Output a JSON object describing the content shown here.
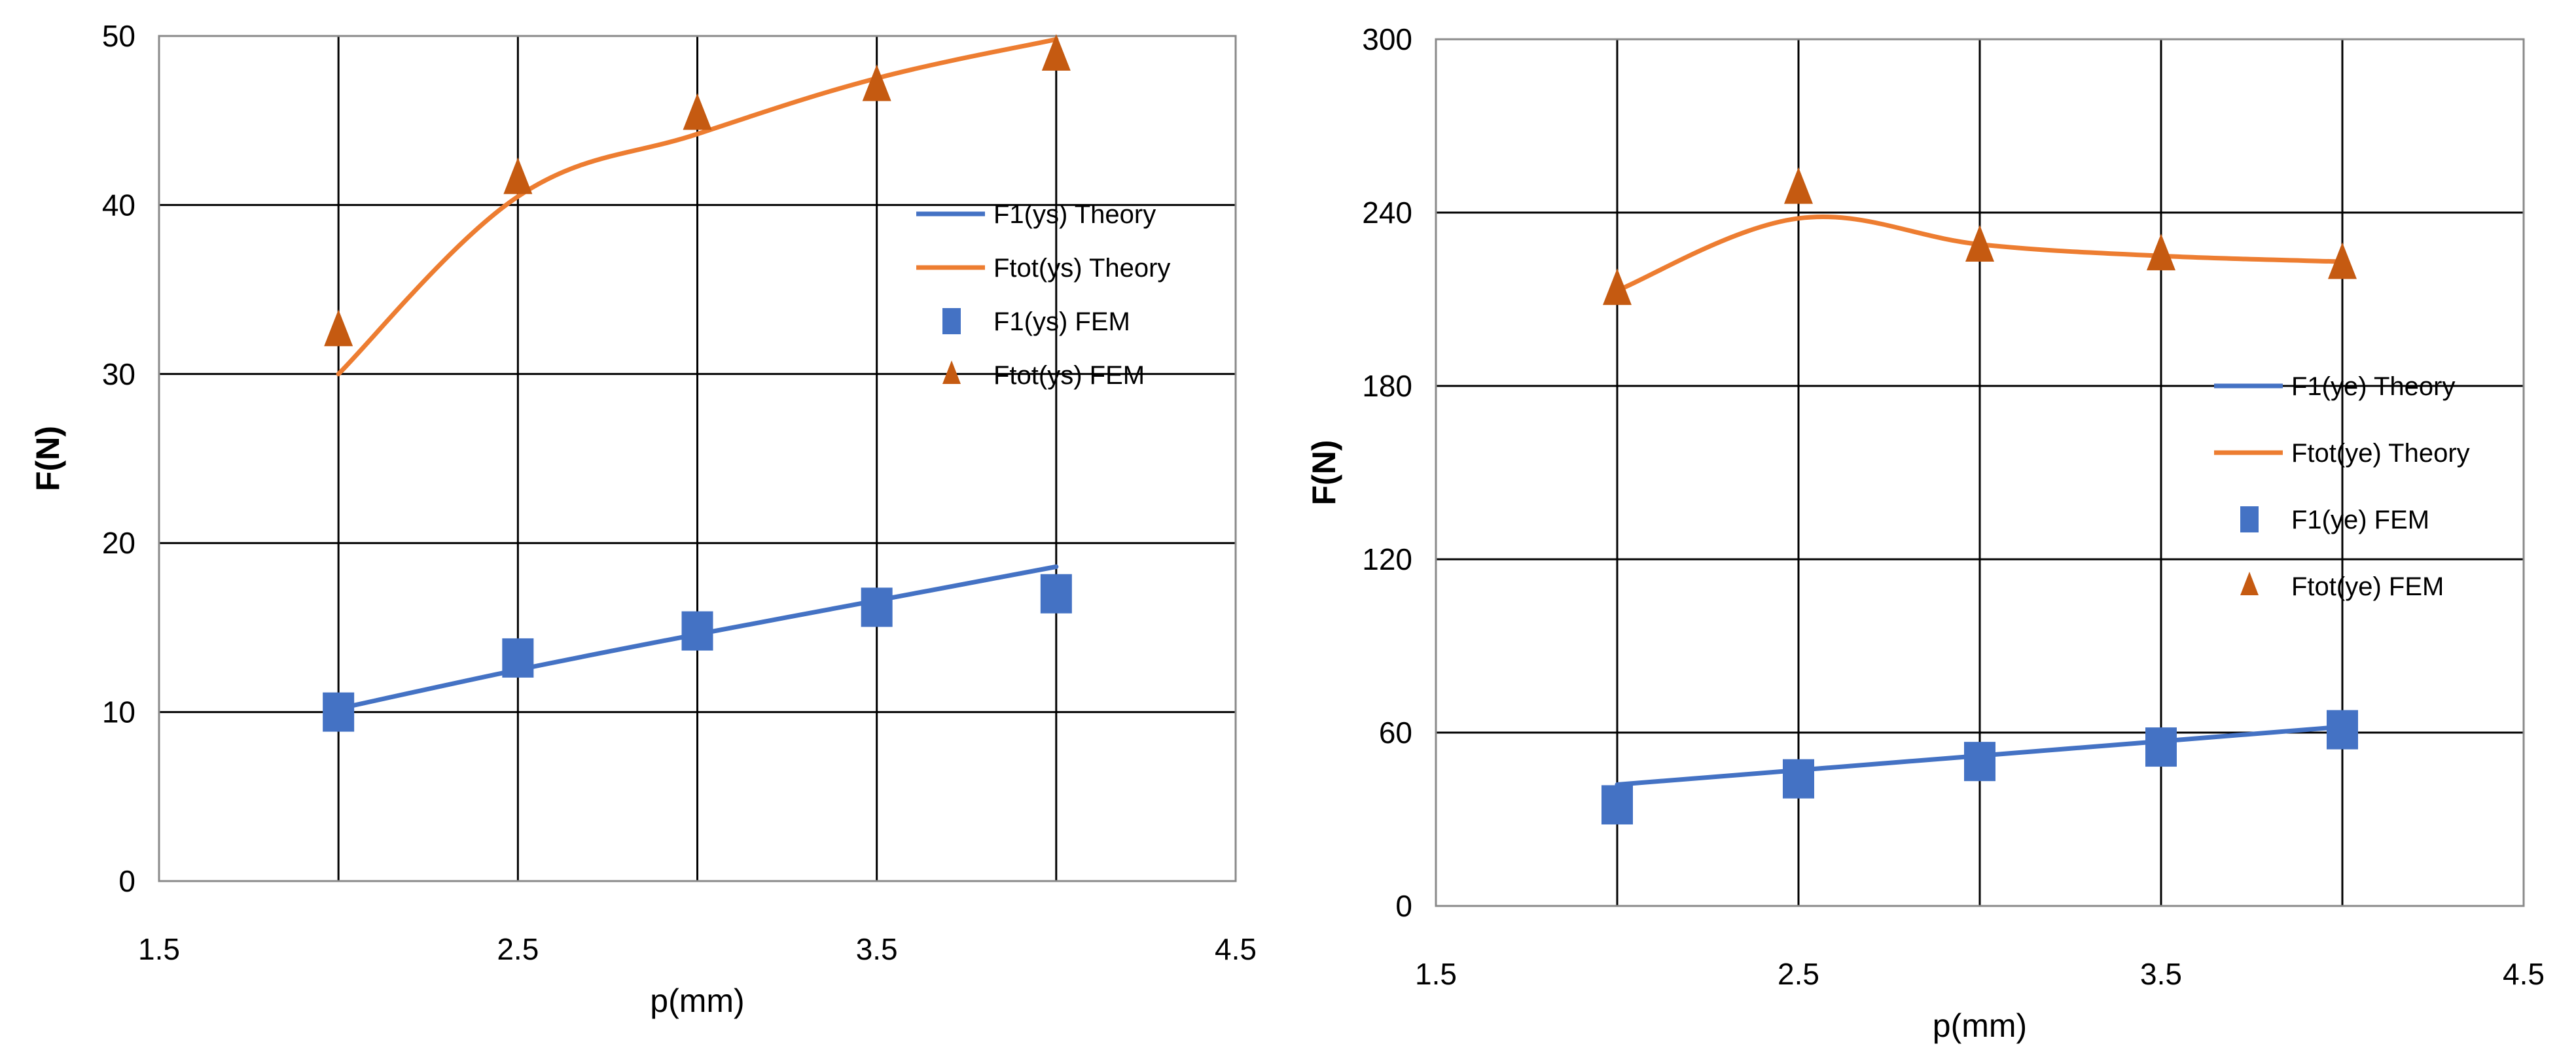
{
  "chart_data": [
    {
      "type": "line",
      "title": "",
      "xlabel": "p(mm)",
      "ylabel": "F(N)",
      "xlim": [
        1.5,
        4.5
      ],
      "ylim": [
        0,
        50
      ],
      "x_ticks": [
        "1.5",
        "2.5",
        "3.5",
        "4.5"
      ],
      "y_ticks": [
        "0",
        "10",
        "20",
        "30",
        "40",
        "50"
      ],
      "grid": true,
      "legend_position": "center-right",
      "series": [
        {
          "name": "F1(ys) Theory",
          "kind": "line",
          "color": "#4472C4",
          "x": [
            2.0,
            2.5,
            3.0,
            3.5,
            4.0
          ],
          "values": [
            10.2,
            12.5,
            14.6,
            16.6,
            18.6
          ]
        },
        {
          "name": "Ftot(ys) Theory",
          "kind": "line",
          "color": "#ED7D31",
          "x": [
            2.0,
            2.5,
            3.0,
            3.5,
            4.0
          ],
          "values": [
            30.0,
            40.5,
            44.2,
            47.5,
            49.8
          ]
        },
        {
          "name": "F1(ys) FEM",
          "kind": "square",
          "color": "#4472C4",
          "x": [
            2.0,
            2.5,
            3.0,
            3.5,
            4.0
          ],
          "values": [
            10.0,
            13.2,
            14.8,
            16.2,
            17.0
          ]
        },
        {
          "name": "Ftot(ys) FEM",
          "kind": "triangle",
          "color": "#C55A11",
          "x": [
            2.0,
            2.5,
            3.0,
            3.5,
            4.0
          ],
          "values": [
            32.5,
            41.5,
            45.3,
            47.0,
            48.8
          ]
        }
      ]
    },
    {
      "type": "line",
      "title": "",
      "xlabel": "p(mm)",
      "ylabel": "F(N)",
      "xlim": [
        1.5,
        4.5
      ],
      "ylim": [
        0,
        300
      ],
      "x_ticks": [
        "1.5",
        "2.5",
        "3.5",
        "4.5"
      ],
      "y_ticks": [
        "0",
        "60",
        "120",
        "180",
        "240",
        "300"
      ],
      "grid": true,
      "legend_position": "center-right",
      "series": [
        {
          "name": "F1(ye) Theory",
          "kind": "line",
          "color": "#4472C4",
          "x": [
            2.0,
            2.5,
            3.0,
            3.5,
            4.0
          ],
          "values": [
            42,
            47,
            52,
            57,
            62
          ]
        },
        {
          "name": "Ftot(ye) Theory",
          "kind": "line",
          "color": "#ED7D31",
          "x": [
            2.0,
            2.5,
            3.0,
            3.5,
            4.0
          ],
          "values": [
            213,
            238,
            229,
            225,
            223
          ]
        },
        {
          "name": "F1(ye) FEM",
          "kind": "square",
          "color": "#4472C4",
          "x": [
            2.0,
            2.5,
            3.0,
            3.5,
            4.0
          ],
          "values": [
            35,
            44,
            50,
            55,
            61
          ]
        },
        {
          "name": "Ftot(ye) FEM",
          "kind": "triangle",
          "color": "#C55A11",
          "x": [
            2.0,
            2.5,
            3.0,
            3.5,
            4.0
          ],
          "values": [
            213,
            248,
            228,
            225,
            222
          ]
        }
      ]
    }
  ]
}
